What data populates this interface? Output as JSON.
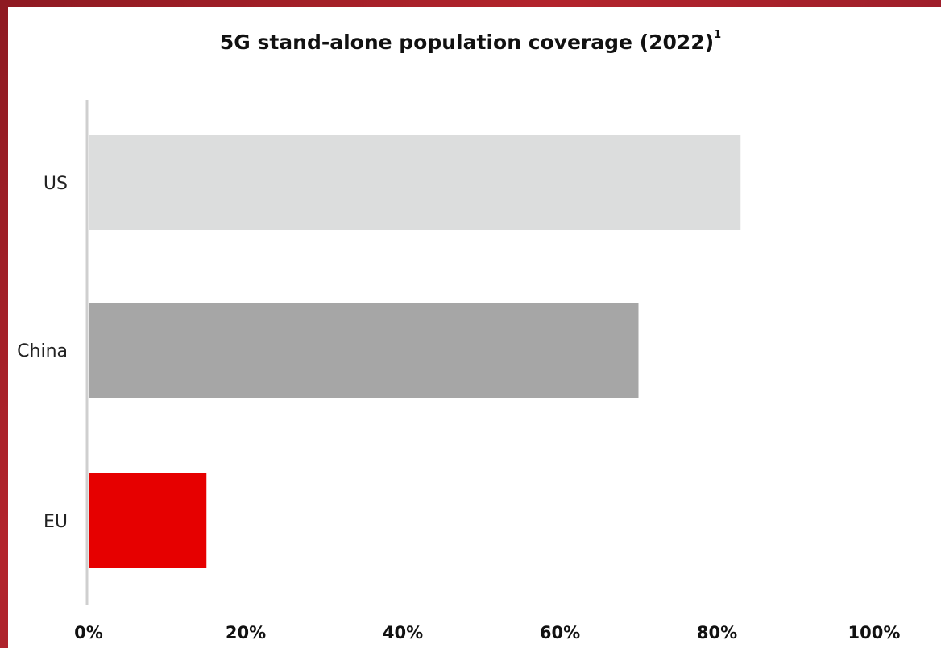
{
  "chart_data": {
    "type": "bar",
    "orientation": "horizontal",
    "title": "5G stand-alone population coverage (2022)",
    "title_superscript": "1",
    "categories": [
      "US",
      "China",
      "EU"
    ],
    "values": [
      83,
      70,
      15
    ],
    "bar_colors": [
      "#dcdddd",
      "#a6a6a6",
      "#e60000"
    ],
    "xlim": [
      0,
      100
    ],
    "x_ticks": [
      0,
      20,
      40,
      60,
      80,
      100
    ],
    "x_tick_labels": [
      "0%",
      "20%",
      "40%",
      "60%",
      "80%",
      "100%"
    ],
    "grid": false,
    "legend": "none"
  }
}
